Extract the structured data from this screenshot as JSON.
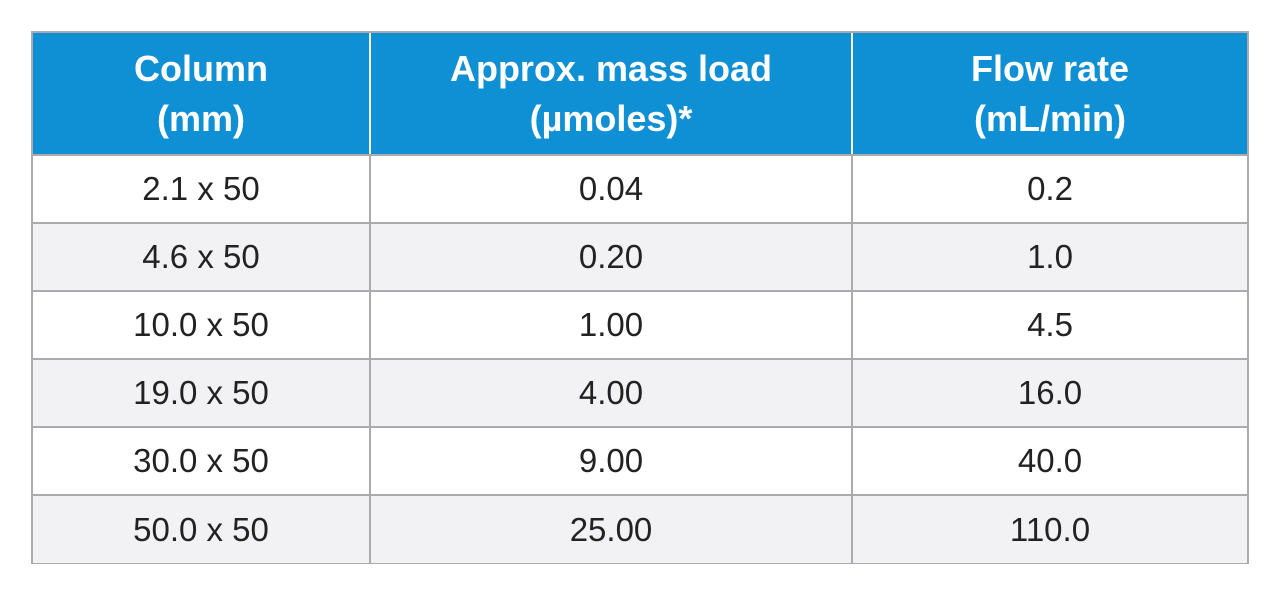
{
  "table": {
    "headers": [
      {
        "line1": "Column",
        "line2": "(mm)"
      },
      {
        "line1": "Approx. mass load",
        "line2": "(µmoles)*"
      },
      {
        "line1": "Flow rate",
        "line2": "(mL/min)"
      }
    ],
    "rows": [
      [
        "2.1 x 50",
        "0.04",
        "0.2"
      ],
      [
        "4.6 x 50",
        "0.20",
        "1.0"
      ],
      [
        "10.0 x 50",
        "1.00",
        "4.5"
      ],
      [
        "19.0 x 50",
        "4.00",
        "16.0"
      ],
      [
        "30.0 x 50",
        "9.00",
        "40.0"
      ],
      [
        "50.0 x 50",
        "25.00",
        "110.0"
      ]
    ]
  },
  "colors": {
    "header_bg": "#0f8fd4",
    "header_text": "#ffffff",
    "border": "#a9abae",
    "row_alt_bg": "#f2f2f4"
  }
}
